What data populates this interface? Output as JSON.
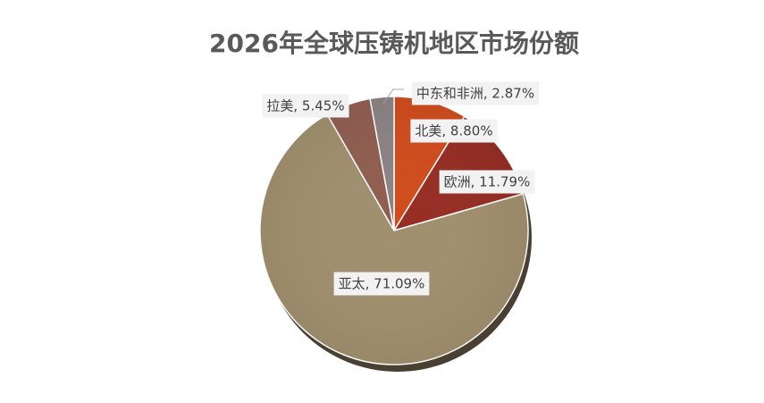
{
  "chart_data": {
    "type": "pie",
    "title": "2026年全球压铸机地区市场份额",
    "categories": [
      "北美",
      "欧洲",
      "亚太",
      "拉美",
      "中东和非洲"
    ],
    "values": [
      8.8,
      11.79,
      71.09,
      5.45,
      2.87
    ],
    "value_labels": [
      "北美, 8.80%",
      "欧洲, 11.79%",
      "亚太, 71.09%",
      "拉美, 5.45%",
      "中东和非洲, 2.87%"
    ],
    "colors": [
      "#d04b1b",
      "#952c22",
      "#a08f6d",
      "#8f5d4f",
      "#8c8284"
    ]
  }
}
